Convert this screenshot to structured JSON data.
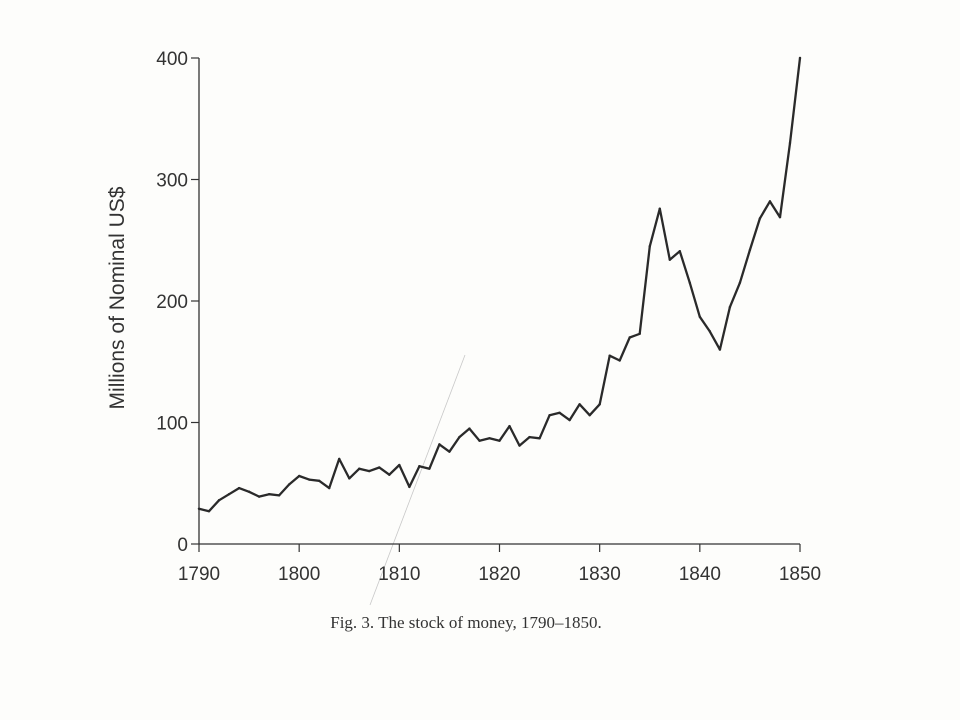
{
  "chart_data": {
    "type": "line",
    "title": "",
    "caption": "Fig.  3. The stock of money, 1790–1850.",
    "xlabel": "",
    "ylabel": "Millions of Nominal US$",
    "xlim": [
      1790,
      1850
    ],
    "ylim": [
      0,
      400
    ],
    "x_ticks": [
      1790,
      1800,
      1810,
      1820,
      1830,
      1840,
      1850
    ],
    "y_ticks": [
      0,
      100,
      200,
      300,
      400
    ],
    "x_tick_labels": [
      "1790",
      "1800",
      "1810",
      "1820",
      "1830",
      "1840",
      "1850"
    ],
    "y_tick_labels": [
      "0",
      "100",
      "200",
      "300",
      "400"
    ],
    "grid": false,
    "legend": "none",
    "line_color": "#2a2a2a",
    "series": [
      {
        "x": [
          1790,
          1791,
          1792,
          1793,
          1794,
          1795,
          1796,
          1797,
          1798,
          1799,
          1800,
          1801,
          1802,
          1803,
          1804,
          1805,
          1806,
          1807,
          1808,
          1809,
          1810,
          1811,
          1812,
          1813,
          1814,
          1815,
          1816,
          1817,
          1818,
          1819,
          1820,
          1821,
          1822,
          1823,
          1824,
          1825,
          1826,
          1827,
          1828,
          1829,
          1830,
          1831,
          1832,
          1833,
          1834,
          1835,
          1836,
          1837,
          1838,
          1839,
          1840,
          1841,
          1842,
          1843,
          1844,
          1845,
          1846,
          1847,
          1848,
          1849,
          1850
        ],
        "values": [
          29,
          27,
          36,
          41,
          46,
          43,
          39,
          41,
          40,
          49,
          56,
          53,
          52,
          46,
          70,
          54,
          62,
          60,
          63,
          57,
          65,
          47,
          64,
          62,
          82,
          76,
          88,
          95,
          85,
          87,
          85,
          97,
          81,
          88,
          87,
          106,
          108,
          102,
          115,
          106,
          115,
          155,
          151,
          170,
          173,
          245,
          276,
          234,
          241,
          215,
          187,
          175,
          160,
          195,
          215,
          242,
          268,
          282,
          269,
          330,
          400
        ]
      }
    ]
  }
}
